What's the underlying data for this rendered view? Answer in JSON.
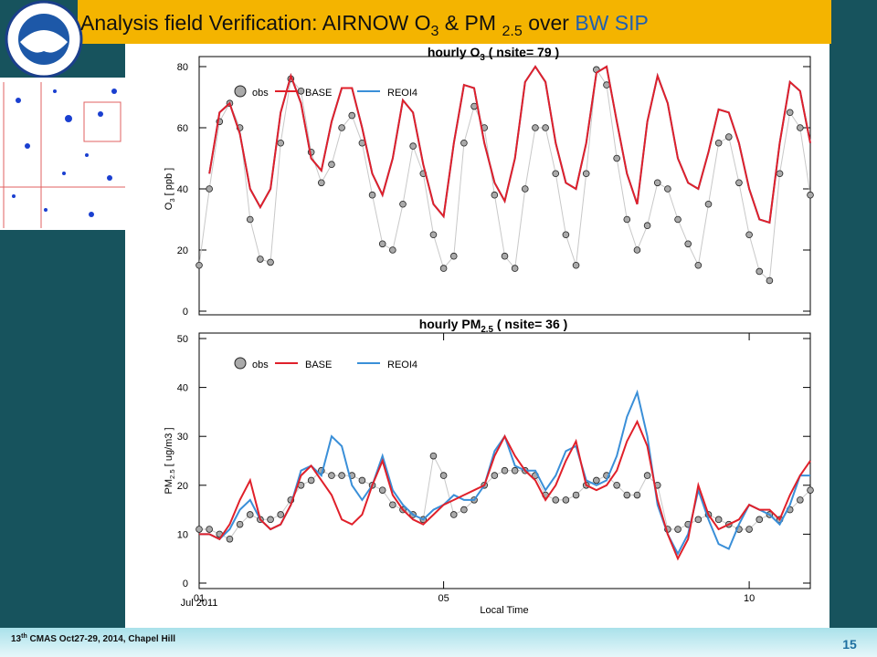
{
  "header": {
    "title": [
      "Analysis field Verification: AIRNOW O",
      "3",
      " & PM ",
      "2.5",
      " over ",
      "BW SIP"
    ]
  },
  "chart_data": [
    {
      "type": "line",
      "title": [
        "hourly O",
        "3",
        " ( nsite= 79 )"
      ],
      "ylabel": [
        "O",
        "3",
        " [ ppb ]"
      ],
      "xlim": [
        0,
        240
      ],
      "ylim": [
        0,
        80
      ],
      "yticks": [
        0,
        20,
        40,
        60,
        80
      ],
      "grid": false,
      "legend": "upper left",
      "x": [
        0,
        4,
        8,
        12,
        16,
        20,
        24,
        28,
        32,
        36,
        40,
        44,
        48,
        52,
        56,
        60,
        64,
        68,
        72,
        76,
        80,
        84,
        88,
        92,
        96,
        100,
        104,
        108,
        112,
        116,
        120,
        124,
        128,
        132,
        136,
        140,
        144,
        148,
        152,
        156,
        160,
        164,
        168,
        172,
        176,
        180,
        184,
        188,
        192,
        196,
        200,
        204,
        208,
        212,
        216,
        220,
        224,
        228,
        232,
        236,
        240
      ],
      "series": [
        {
          "name": "obs",
          "color": "#aaaaaa",
          "marker": "circle",
          "values": [
            15,
            40,
            62,
            68,
            60,
            30,
            17,
            16,
            55,
            76,
            72,
            52,
            42,
            48,
            60,
            64,
            55,
            38,
            22,
            20,
            35,
            54,
            45,
            25,
            14,
            18,
            55,
            67,
            60,
            38,
            18,
            14,
            40,
            60,
            60,
            45,
            25,
            15,
            45,
            79,
            74,
            50,
            30,
            20,
            28,
            42,
            40,
            30,
            22,
            15,
            35,
            55,
            57,
            42,
            25,
            13,
            10,
            45,
            65,
            60,
            38
          ]
        },
        {
          "name": "BASE",
          "color": "#e0202a",
          "values": [
            null,
            45,
            65,
            68,
            58,
            40,
            34,
            40,
            65,
            77,
            68,
            50,
            46,
            62,
            73,
            73,
            60,
            45,
            38,
            50,
            69,
            65,
            48,
            35,
            31,
            55,
            74,
            73,
            55,
            42,
            36,
            50,
            75,
            80,
            75,
            55,
            42,
            40,
            55,
            78,
            80,
            62,
            45,
            35,
            62,
            77,
            68,
            50,
            42,
            40,
            52,
            66,
            65,
            55,
            40,
            30,
            29,
            55,
            75,
            72,
            55
          ]
        },
        {
          "name": "REOI4",
          "color": "#3a8fd8",
          "values": [
            null,
            45,
            65,
            68,
            58,
            40,
            34,
            40,
            65,
            77,
            68,
            50,
            46,
            62,
            73,
            73,
            60,
            45,
            38,
            50,
            69,
            65,
            48,
            35,
            31,
            55,
            74,
            73,
            55,
            42,
            36,
            50,
            75,
            80,
            75,
            55,
            42,
            40,
            55,
            78,
            80,
            62,
            45,
            35,
            62,
            77,
            68,
            50,
            42,
            40,
            52,
            66,
            65,
            55,
            40,
            30,
            29,
            55,
            75,
            72,
            55
          ]
        }
      ]
    },
    {
      "type": "line",
      "title": [
        "hourly PM",
        "2.5",
        " ( nsite= 36 )"
      ],
      "ylabel": [
        "PM",
        "2.5",
        " [ ug/m3 ]"
      ],
      "xlabel": "Local Time",
      "xtick_note": "Jul 2011",
      "xlim": [
        0,
        240
      ],
      "xticks": [
        {
          "value": 0,
          "label": "01"
        },
        {
          "value": 96,
          "label": "05"
        },
        {
          "value": 216,
          "label": "10"
        }
      ],
      "ylim": [
        0,
        50
      ],
      "yticks": [
        0,
        10,
        20,
        30,
        40,
        50
      ],
      "grid": false,
      "legend": "upper left",
      "x": [
        0,
        4,
        8,
        12,
        16,
        20,
        24,
        28,
        32,
        36,
        40,
        44,
        48,
        52,
        56,
        60,
        64,
        68,
        72,
        76,
        80,
        84,
        88,
        92,
        96,
        100,
        104,
        108,
        112,
        116,
        120,
        124,
        128,
        132,
        136,
        140,
        144,
        148,
        152,
        156,
        160,
        164,
        168,
        172,
        176,
        180,
        184,
        188,
        192,
        196,
        200,
        204,
        208,
        212,
        216,
        220,
        224,
        228,
        232,
        236,
        240
      ],
      "series": [
        {
          "name": "obs",
          "color": "#aaaaaa",
          "marker": "circle",
          "values": [
            11,
            11,
            10,
            9,
            12,
            14,
            13,
            13,
            14,
            17,
            20,
            21,
            23,
            22,
            22,
            22,
            21,
            20,
            19,
            16,
            15,
            14,
            13,
            26,
            22,
            14,
            15,
            17,
            20,
            22,
            23,
            23,
            23,
            22,
            18,
            17,
            17,
            18,
            20,
            21,
            22,
            20,
            18,
            18,
            22,
            20,
            11,
            11,
            12,
            13,
            14,
            13,
            12,
            11,
            11,
            13,
            14,
            13,
            15,
            17,
            19
          ]
        },
        {
          "name": "BASE",
          "color": "#e0202a",
          "values": [
            10,
            10,
            9,
            12,
            17,
            21,
            13,
            11,
            12,
            16,
            22,
            24,
            21,
            18,
            13,
            12,
            14,
            20,
            25,
            18,
            15,
            13,
            12,
            14,
            16,
            17,
            18,
            19,
            20,
            26,
            30,
            26,
            23,
            21,
            17,
            20,
            25,
            29,
            20,
            19,
            20,
            23,
            29,
            33,
            28,
            17,
            10,
            5,
            9,
            20,
            14,
            11,
            12,
            13,
            16,
            15,
            15,
            13,
            18,
            22,
            25
          ]
        },
        {
          "name": "REOI4",
          "color": "#3a8fd8",
          "values": [
            10,
            10,
            9,
            11,
            15,
            17,
            13,
            11,
            12,
            16,
            23,
            24,
            22,
            30,
            28,
            20,
            17,
            20,
            26,
            19,
            16,
            14,
            13,
            15,
            16,
            18,
            17,
            17,
            20,
            27,
            30,
            24,
            23,
            23,
            19,
            22,
            27,
            28,
            21,
            20,
            21,
            26,
            34,
            39,
            30,
            16,
            10,
            6,
            10,
            19,
            13,
            8,
            7,
            12,
            16,
            15,
            14,
            12,
            16,
            22,
            22
          ]
        }
      ]
    }
  ],
  "footer": {
    "text": [
      "13",
      "th",
      " CMAS Oct27-29, 2014, Chapel Hill"
    ],
    "page": "15"
  }
}
